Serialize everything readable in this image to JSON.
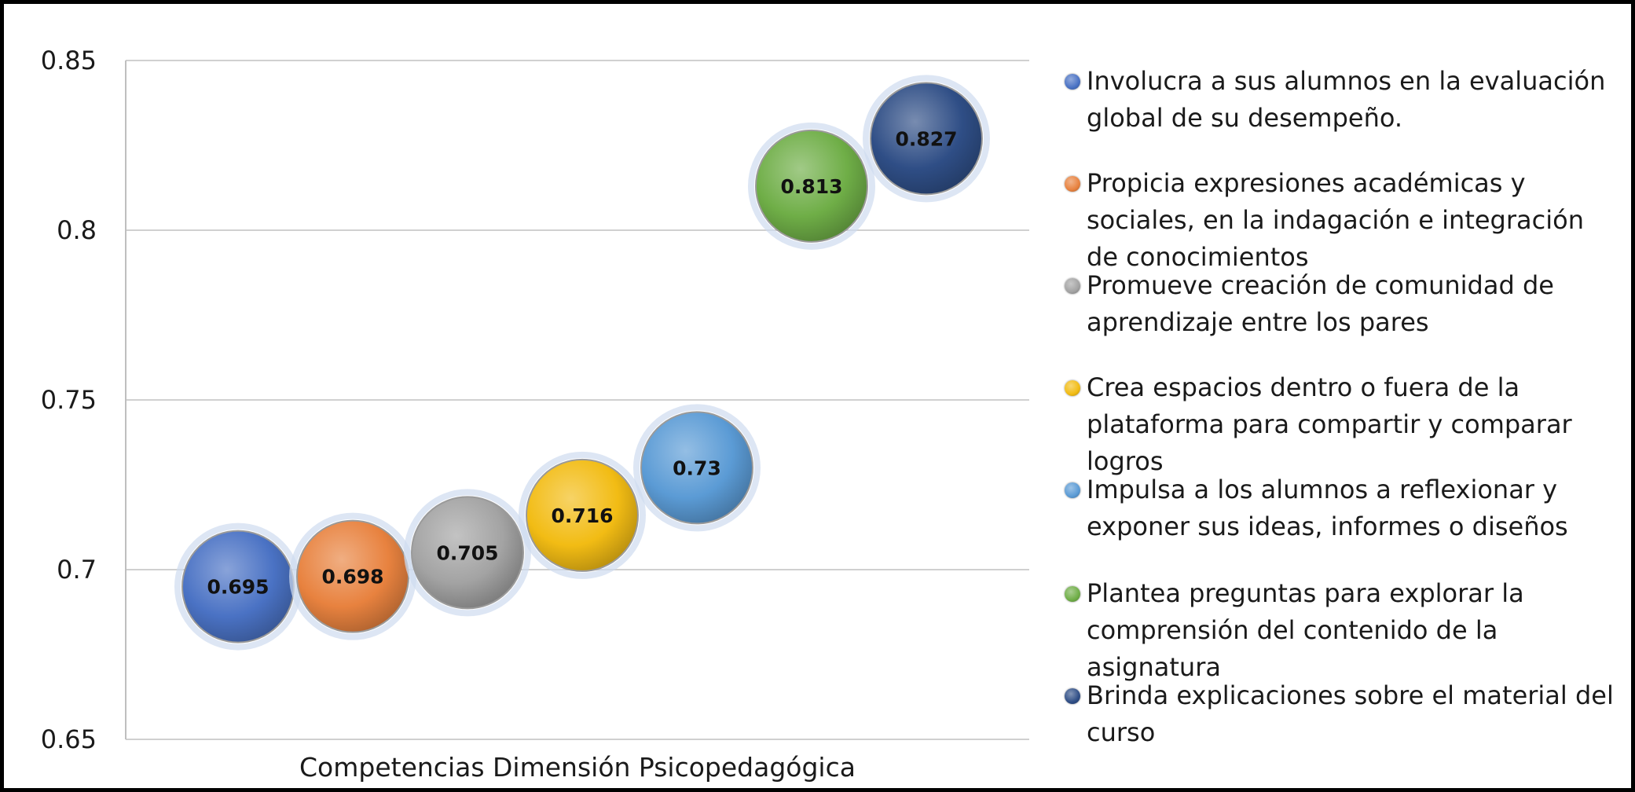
{
  "chart_data": {
    "type": "bubble",
    "title": "",
    "xlabel": "Competencias Dimensión Psicopedagógica",
    "ylabel": "",
    "ylim": [
      0.65,
      0.85
    ],
    "yticks": [
      "0.65",
      "0.7",
      "0.75",
      "0.8",
      "0.85"
    ],
    "grid": true,
    "legend_position": "right",
    "series": [
      {
        "name": "Involucra a sus alumnos en la evaluación global de su desempeño.",
        "value": 0.695,
        "label": "0.695",
        "color": "#4a72c4"
      },
      {
        "name": "Propicia expresiones académicas y sociales, en la indagación e integración de conocimientos",
        "value": 0.698,
        "label": "0.698",
        "color": "#e8823f"
      },
      {
        "name": "Promueve creación de comunidad de aprendizaje entre los pares",
        "value": 0.705,
        "label": "0.705",
        "color": "#a3a3a3"
      },
      {
        "name": "Crea espacios dentro o fuera de la plataforma para compartir y comparar logros",
        "value": 0.716,
        "label": "0.716",
        "color": "#f2bc14"
      },
      {
        "name": "Impulsa a los alumnos a reflexionar y exponer sus ideas, informes o diseños",
        "value": 0.73,
        "label": "0.73",
        "color": "#5b9bd5"
      },
      {
        "name": "Plantea preguntas para explorar la comprensión del contenido de la asignatura",
        "value": 0.813,
        "label": "0.813",
        "color": "#6fae47"
      },
      {
        "name": "Brinda explicaciones sobre el material del curso",
        "value": 0.827,
        "label": "0.827",
        "color": "#2f4e86"
      }
    ]
  }
}
